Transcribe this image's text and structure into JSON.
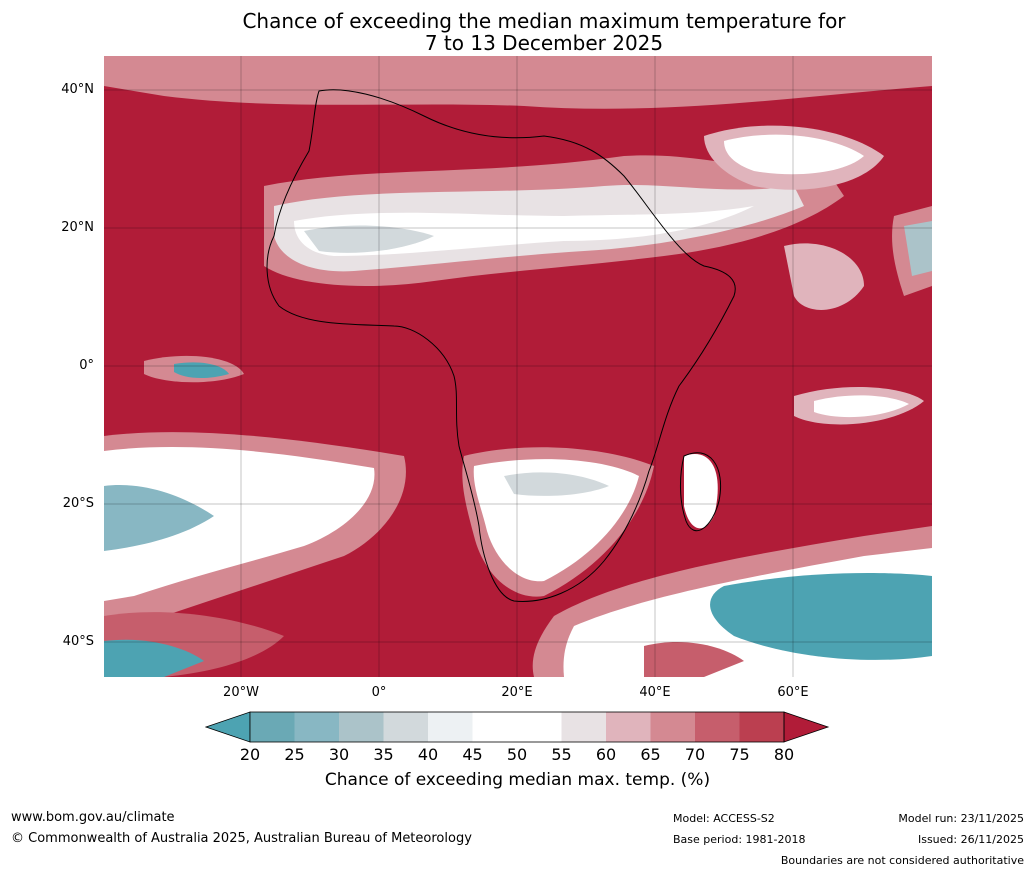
{
  "title_line1": "Chance of exceeding the median maximum temperature for",
  "title_line2": "7 to 13 December 2025",
  "lat_labels": [
    "40°N",
    "20°N",
    "0°",
    "20°S",
    "40°S"
  ],
  "lon_labels": [
    "20°W",
    "0°",
    "20°E",
    "40°E",
    "60°E"
  ],
  "colorbar": {
    "ticks": [
      "20",
      "25",
      "30",
      "35",
      "40",
      "45",
      "50",
      "55",
      "60",
      "65",
      "70",
      "75",
      "80"
    ],
    "colors": [
      "#4da3b2",
      "#6aa9b5",
      "#88b7c3",
      "#abc3c9",
      "#d2d9dc",
      "#edf1f3",
      "#ffffff",
      "#ffffff",
      "#e8e2e4",
      "#e0b4bc",
      "#d48992",
      "#c65e6c",
      "#bb3f50",
      "#b11c38"
    ],
    "title": "Chance of exceeding median max. temp. (%)"
  },
  "footer": {
    "website": "www.bom.gov.au/climate",
    "copyright": "© Commonwealth of Australia 2025, Australian Bureau of Meteorology",
    "model": "Model: ACCESS-S2",
    "base_period": "Base period: 1981-2018",
    "model_run": "Model run: 23/11/2025",
    "issued": "Issued: 26/11/2025",
    "disclaimer": "Boundaries are not considered authoritative"
  }
}
